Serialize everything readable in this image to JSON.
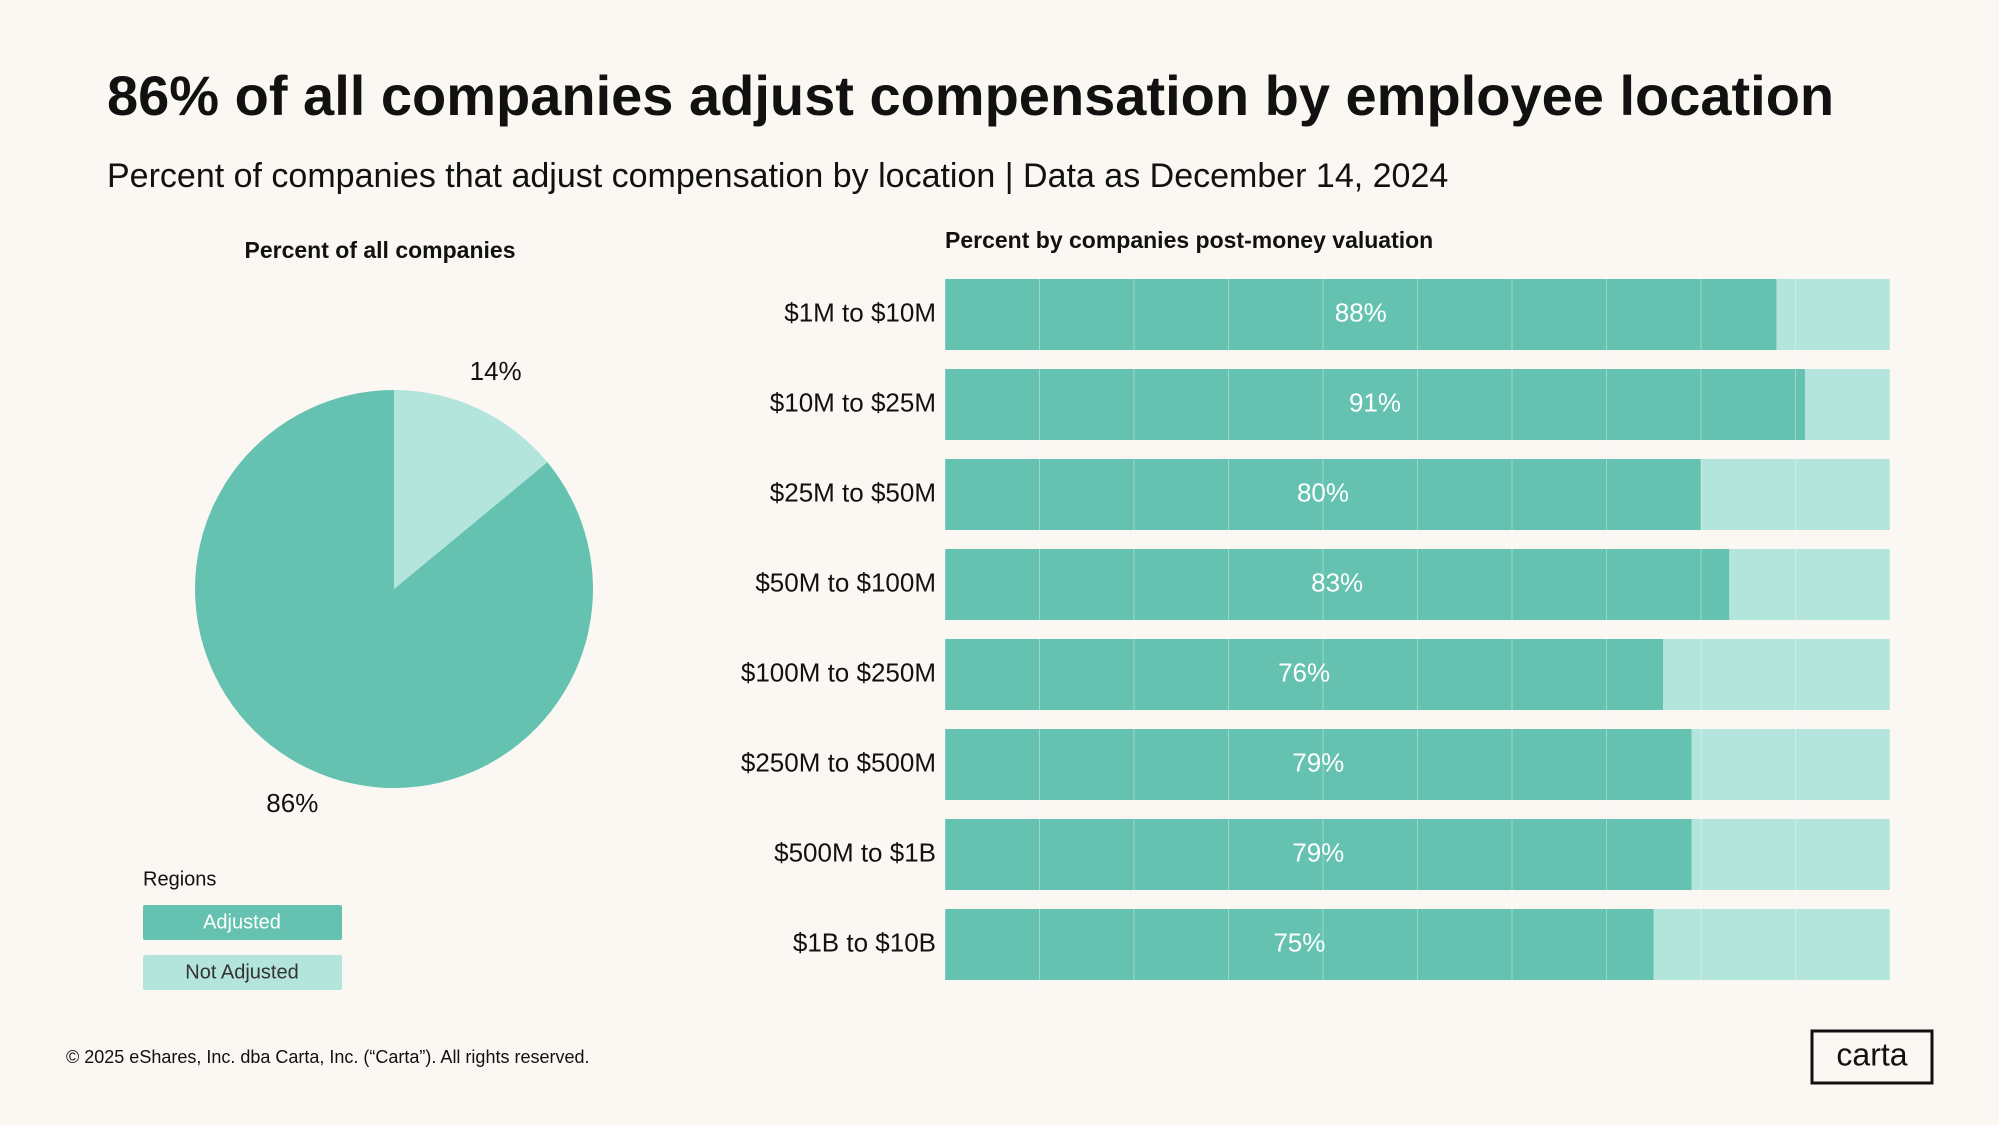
{
  "title": "86% of all companies adjust compensation by employee location",
  "subtitle": "Percent of companies that adjust compensation by location | Data as December 14, 2024",
  "footer": "© 2025 eShares, Inc. dba Carta, Inc. (“Carta”). All rights reserved.",
  "logo": "carta",
  "chart_data": [
    {
      "type": "pie",
      "title": "Percent of all companies",
      "values": [
        86,
        14
      ],
      "value_labels": [
        "86%",
        "14%"
      ],
      "colors": [
        "#66c2b0",
        "#b3e5dc"
      ]
    },
    {
      "type": "hbar_stacked",
      "title": "Percent by companies post-money valuation",
      "categories": [
        "$1M to $10M",
        "$10M to $25M",
        "$25M to $50M",
        "$50M to $100M",
        "$100M to $250M",
        "$250M to $500M",
        "$500M to $1B",
        "$1B to $10B"
      ],
      "series": [
        {
          "name": "Adjusted",
          "color": "#66c2b0",
          "values": [
            88,
            91,
            80,
            83,
            76,
            79,
            79,
            75
          ],
          "value_labels": [
            "88%",
            "91%",
            "80%",
            "83%",
            "76%",
            "79%",
            "79%",
            "75%"
          ]
        },
        {
          "name": "Not Adjusted",
          "color": "#b3e5dc",
          "values": [
            12,
            9,
            20,
            17,
            24,
            21,
            21,
            25
          ]
        }
      ],
      "xlim": [
        0,
        100
      ],
      "xticks": [
        0,
        10,
        20,
        30,
        40,
        50,
        60,
        70,
        80,
        90,
        100
      ],
      "grid": true,
      "legend_title": "Regions"
    }
  ]
}
